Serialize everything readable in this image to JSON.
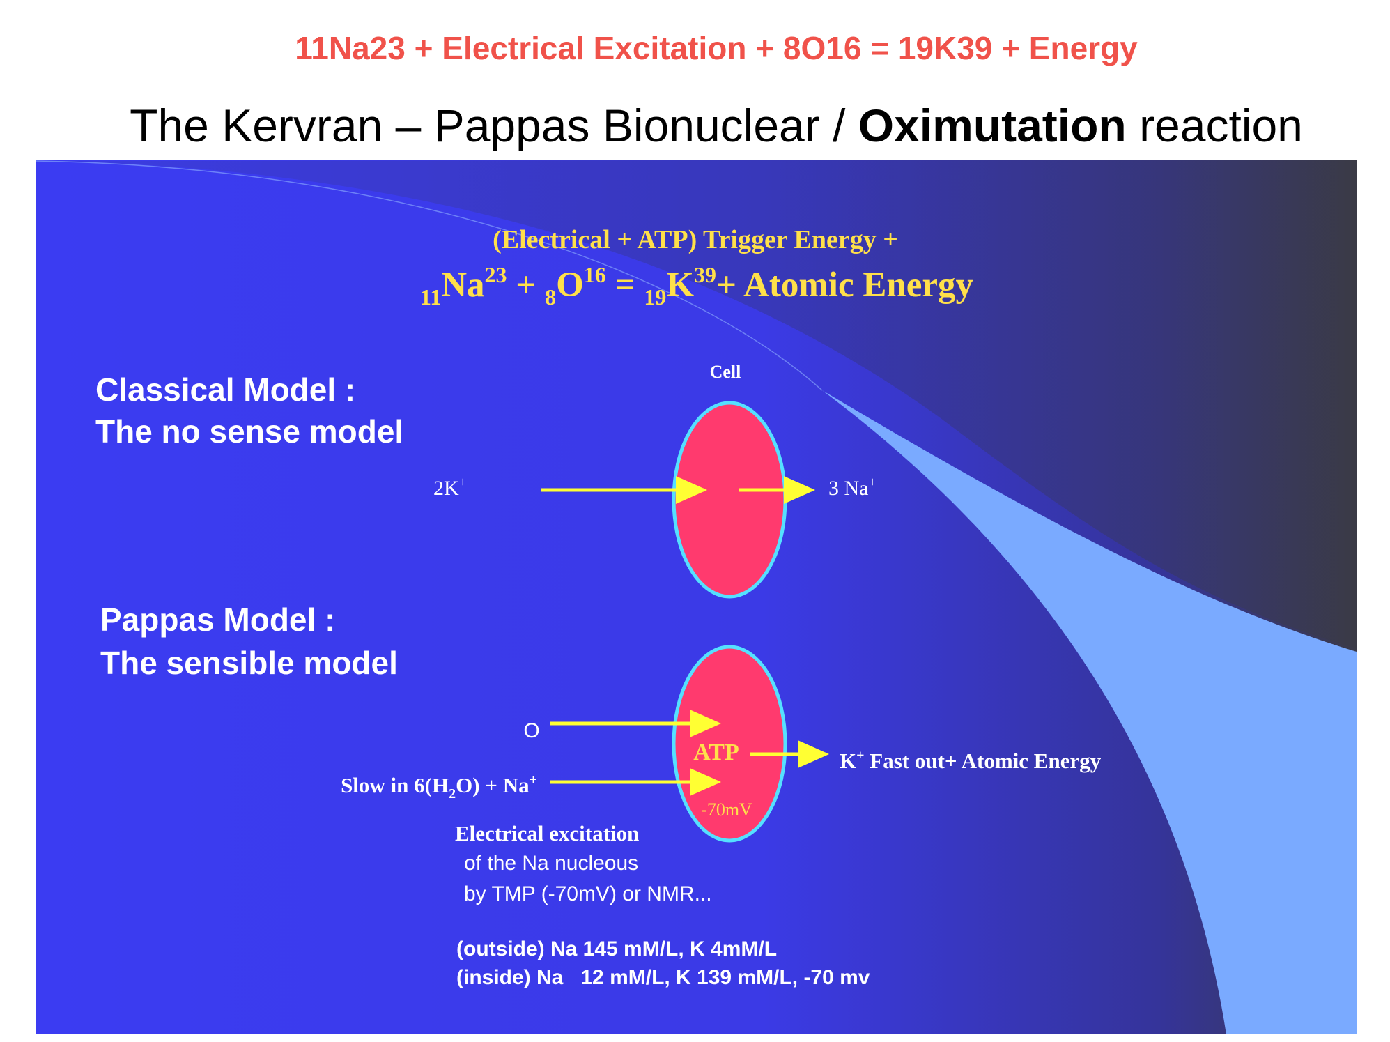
{
  "header": {
    "formula": "11Na23 + Electrical Excitation + 8O16 = 19K39 + Energy",
    "title": [
      "The Kervran – Pappas Bionuclear / ",
      "Oximutation",
      " reaction"
    ]
  },
  "slide": {
    "trigger": "(Electrical + ATP) Trigger Energy  +",
    "equation": [
      "11",
      "Na",
      "23",
      " + ",
      "8",
      "O",
      "16",
      " =  ",
      "19",
      "K",
      "39",
      "+ Atomic Energy"
    ],
    "classical": {
      "heading": "Classical Model :",
      "subheading": "The no sense model",
      "cell": "Cell",
      "left": [
        "2K",
        "+"
      ],
      "right": [
        "3 Na",
        "+"
      ]
    },
    "pappas": {
      "heading": "Pappas Model :",
      "subheading": "The sensible model",
      "o": "O",
      "atp": "ATP",
      "mv": "-70mV",
      "out": [
        "K",
        "+",
        " Fast out+ Atomic Energy"
      ],
      "slow": [
        "Slow in 6(H",
        "2",
        "O) + Na",
        "+"
      ],
      "excitation": [
        "Electrical excitation",
        "of the Na nucleous",
        "by TMP (-70mV) or NMR..."
      ]
    },
    "concentrations": [
      "(outside) Na 145 mM/L, K 4mM/L",
      "(inside) Na   12 mM/L, K 139 mM/L, -70 mv"
    ]
  }
}
